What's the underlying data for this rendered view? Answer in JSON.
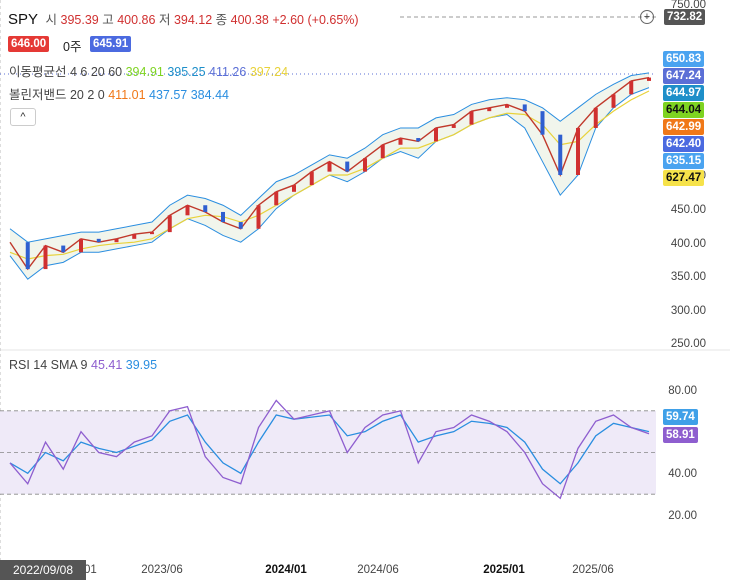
{
  "header": {
    "symbol": "SPY",
    "open_label": "시",
    "open": "395.39",
    "high_label": "고",
    "high": "400.86",
    "low_label": "저",
    "low": "394.12",
    "close_label": "종",
    "close": "400.38",
    "change": "+2.60 (+0.65%)",
    "bid": "646.00",
    "qty_label": "0주",
    "ask": "645.91",
    "last_price_top": "732.82"
  },
  "indicators": {
    "ma_label": "이동평균선 4 6 20 60",
    "ma_values": [
      "394.91",
      "395.25",
      "411.26",
      "397.24"
    ],
    "bb_label": "볼린저밴드 20 2 0",
    "bb_values": [
      "411.01",
      "437.57",
      "384.44"
    ],
    "rsi_label": "RSI 14 SMA 9",
    "rsi_values": [
      "45.41",
      "39.95"
    ]
  },
  "price_badges": [
    {
      "value": "650.83",
      "color": "#4aa3f0"
    },
    {
      "value": "647.24",
      "color": "#5b6fd6"
    },
    {
      "value": "644.97",
      "color": "#1e8fc9"
    },
    {
      "value": "644.04",
      "color": "#7ed321"
    },
    {
      "value": "642.99",
      "color": "#f07818"
    },
    {
      "value": "642.40",
      "color": "#4b6ae0"
    },
    {
      "value": "635.15",
      "color": "#4aa3f0"
    },
    {
      "value": "627.47",
      "color": "#f6e24a"
    }
  ],
  "rsi_badges": [
    {
      "value": "59.74",
      "color": "#3fa0e8"
    },
    {
      "value": "58.91",
      "color": "#8e5ecf"
    }
  ],
  "footer": {
    "current_date": "2022/09/08"
  },
  "chart_data": [
    {
      "type": "line",
      "title": "SPY",
      "y_ticks": [
        "750.00",
        "500.00",
        "450.00",
        "400.00",
        "350.00",
        "300.00",
        "250.00"
      ],
      "x_ticks": [
        "2023/01",
        "2023/06",
        "2024/01",
        "2024/06",
        "2025/01",
        "2025/06"
      ],
      "ylim": [
        250,
        750
      ],
      "x": [
        "2022/09",
        "2022/10",
        "2022/11",
        "2022/12",
        "2023/01",
        "2023/02",
        "2023/03",
        "2023/04",
        "2023/05",
        "2023/06",
        "2023/07",
        "2023/08",
        "2023/09",
        "2023/10",
        "2023/11",
        "2023/12",
        "2024/01",
        "2024/02",
        "2024/03",
        "2024/04",
        "2024/05",
        "2024/06",
        "2024/07",
        "2024/08",
        "2024/09",
        "2024/10",
        "2024/11",
        "2024/12",
        "2025/01",
        "2025/02",
        "2025/03",
        "2025/04",
        "2025/05",
        "2025/06",
        "2025/07",
        "2025/08",
        "2025/09"
      ],
      "series": [
        {
          "values": [
            400,
            360,
            395,
            385,
            405,
            400,
            405,
            412,
            415,
            440,
            455,
            445,
            430,
            420,
            455,
            475,
            485,
            505,
            520,
            505,
            525,
            545,
            555,
            550,
            570,
            575,
            595,
            600,
            605,
            595,
            560,
            500,
            570,
            600,
            620,
            640,
            645
          ]
        }
      ],
      "bollinger": {
        "upper": [
          420,
          400,
          405,
          410,
          415,
          415,
          420,
          425,
          430,
          455,
          470,
          465,
          455,
          440,
          465,
          490,
          500,
          515,
          530,
          525,
          540,
          560,
          570,
          570,
          585,
          590,
          605,
          612,
          615,
          612,
          600,
          580,
          600,
          620,
          635,
          648,
          652
        ],
        "lower": [
          380,
          345,
          365,
          370,
          385,
          385,
          390,
          395,
          400,
          420,
          435,
          425,
          410,
          400,
          420,
          450,
          470,
          485,
          500,
          490,
          505,
          525,
          535,
          525,
          550,
          560,
          575,
          585,
          590,
          570,
          520,
          470,
          500,
          570,
          600,
          620,
          630
        ]
      },
      "ma60": [
        385,
        375,
        380,
        382,
        390,
        395,
        398,
        400,
        405,
        420,
        435,
        440,
        438,
        430,
        440,
        455,
        470,
        485,
        500,
        500,
        510,
        525,
        540,
        540,
        550,
        560,
        575,
        585,
        592,
        590,
        575,
        545,
        550,
        575,
        595,
        612,
        625
      ]
    },
    {
      "type": "line",
      "title": "RSI 14 SMA 9",
      "y_ticks": [
        "80.00",
        "40.00",
        "20.00"
      ],
      "ylim": [
        10,
        85
      ],
      "guide_levels": [
        70,
        50,
        30
      ],
      "series": [
        {
          "values": [
            45,
            35,
            55,
            42,
            60,
            50,
            48,
            55,
            58,
            70,
            72,
            48,
            38,
            35,
            62,
            75,
            66,
            68,
            70,
            50,
            62,
            68,
            70,
            45,
            60,
            62,
            68,
            65,
            60,
            50,
            35,
            28,
            52,
            65,
            68,
            62,
            59
          ]
        },
        {
          "values": [
            45,
            40,
            50,
            46,
            55,
            52,
            50,
            53,
            56,
            65,
            68,
            55,
            45,
            40,
            55,
            68,
            66,
            67,
            68,
            58,
            60,
            65,
            68,
            55,
            58,
            60,
            65,
            64,
            62,
            55,
            42,
            35,
            45,
            58,
            64,
            62,
            60
          ]
        }
      ]
    }
  ]
}
